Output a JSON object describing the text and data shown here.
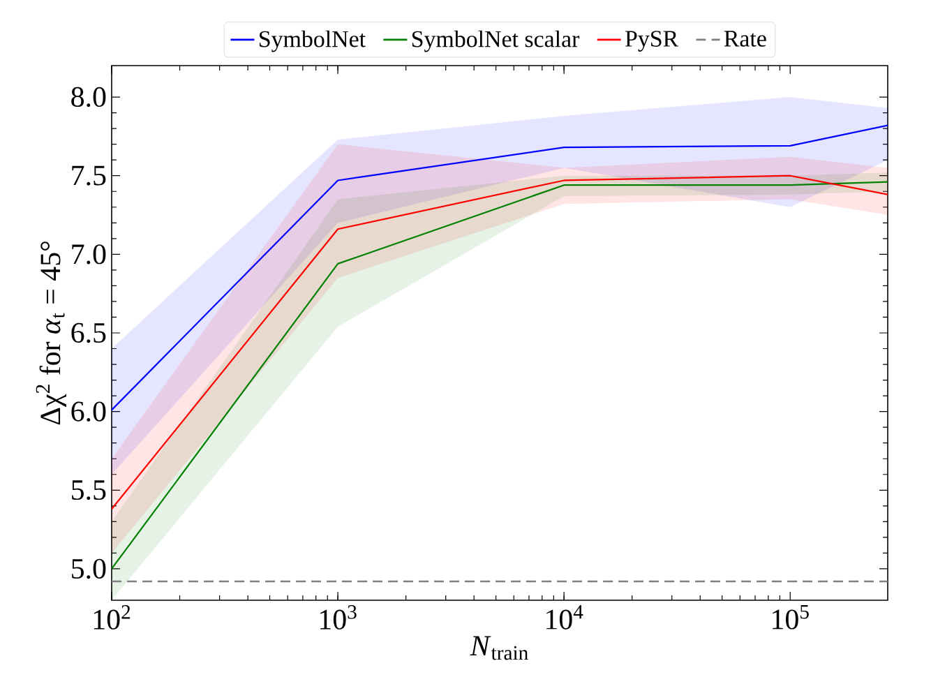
{
  "chart_data": {
    "type": "line",
    "xlabel": "*N*$_{train}$",
    "ylabel": "Δχ$^{2}$ for *α*$_{t}$ = 45°",
    "x": [
      100,
      1000,
      10000,
      100000,
      270000
    ],
    "series": [
      {
        "name": "SymbolNet",
        "color": "#0000ff",
        "values": [
          6.01,
          7.47,
          7.68,
          7.69,
          7.82
        ],
        "lower": [
          5.6,
          7.2,
          7.55,
          7.3,
          7.6
        ],
        "upper": [
          6.4,
          7.73,
          7.88,
          8.0,
          7.93
        ]
      },
      {
        "name": "SymbolNet scalar",
        "color": "#008000",
        "values": [
          5.0,
          6.94,
          7.44,
          7.44,
          7.46
        ],
        "lower": [
          4.8,
          6.54,
          7.37,
          7.38,
          7.4
        ],
        "upper": [
          5.3,
          7.35,
          7.5,
          7.5,
          7.52
        ]
      },
      {
        "name": "PySR",
        "color": "#ff0000",
        "values": [
          5.38,
          7.16,
          7.47,
          7.5,
          7.38
        ],
        "lower": [
          5.1,
          6.85,
          7.32,
          7.35,
          7.25
        ],
        "upper": [
          5.7,
          7.7,
          7.55,
          7.62,
          7.55
        ]
      }
    ],
    "ref_lines": [
      {
        "axis": "y",
        "value": 4.92,
        "label": "Rate",
        "color": "#808080",
        "line_style": "dashed"
      }
    ],
    "xlim": [
      100,
      270000
    ],
    "ylim": [
      4.8,
      8.2
    ],
    "xticks": [
      {
        "value": 100,
        "label": "10$^{2}$"
      },
      {
        "value": 1000,
        "label": "10$^{3}$"
      },
      {
        "value": 10000,
        "label": "10$^{4}$"
      },
      {
        "value": 100000,
        "label": "10$^{5}$"
      }
    ],
    "yticks": [
      {
        "value": 5.0,
        "label": "5.0"
      },
      {
        "value": 5.5,
        "label": "5.5"
      },
      {
        "value": 6.0,
        "label": "6.0"
      },
      {
        "value": 6.5,
        "label": "6.5"
      },
      {
        "value": 7.0,
        "label": "7.0"
      },
      {
        "value": 7.5,
        "label": "7.5"
      },
      {
        "value": 8.0,
        "label": "8.0"
      }
    ],
    "log": "x",
    "legend": "top",
    "marker": "none",
    "line_style": "solid"
  }
}
